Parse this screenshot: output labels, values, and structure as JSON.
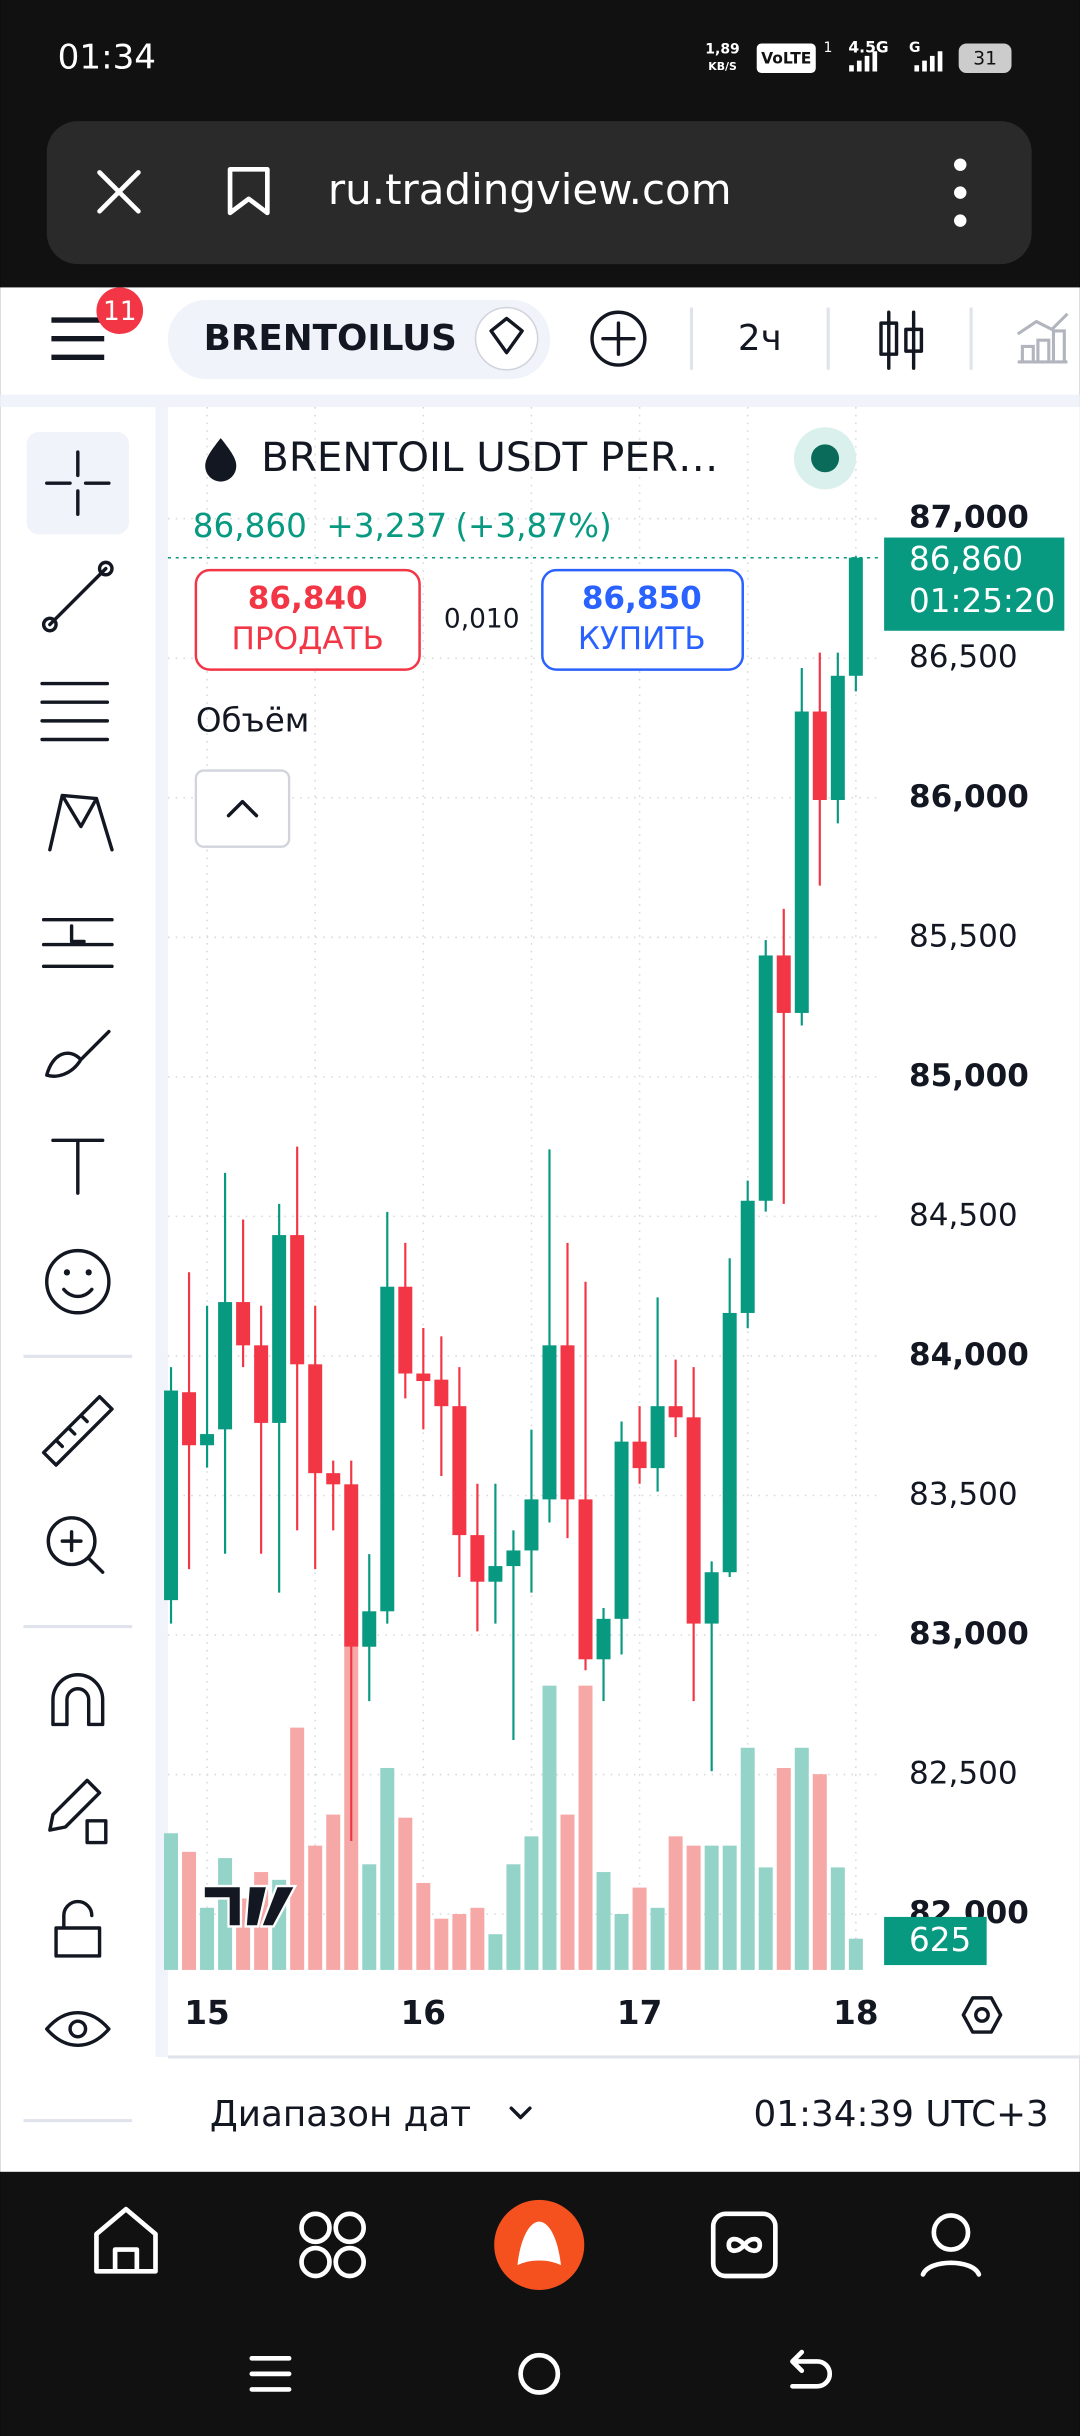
{
  "status_bar": {
    "time": "01:34",
    "speed": "1,89",
    "speed_unit": "KB/S",
    "volte": "VoLTE",
    "sim": "1",
    "net": "4.5G",
    "net2": "G",
    "battery": "31"
  },
  "browser": {
    "url": "ru.tradingview.com"
  },
  "toolbar": {
    "badge": "11",
    "symbol": "BRENTOILUS",
    "interval": "2ч"
  },
  "legend": {
    "title": "BRENTOIL USDT PER…",
    "price": "86,860",
    "change": "+3,237",
    "change_pct": "(+3,87%)"
  },
  "trade": {
    "sell_price": "86,840",
    "sell": "ПРОДАТЬ",
    "spread": "0,010",
    "buy_price": "86,850",
    "buy": "КУПИТЬ"
  },
  "volume_title": "Объём",
  "footer": {
    "date_range": "Диапазон дат",
    "clock": "01:34:39 UTC+3"
  },
  "chart_data": {
    "type": "candlestick",
    "categories": [
      null,
      null,
      "15",
      null,
      null,
      null,
      null,
      null,
      null,
      null,
      null,
      null,
      null,
      null,
      "16",
      null,
      null,
      null,
      null,
      null,
      null,
      null,
      null,
      null,
      null,
      null,
      "17",
      null,
      null,
      null,
      null,
      null,
      null,
      null,
      null,
      null,
      null,
      null,
      "18"
    ],
    "open": [
      83125,
      83870,
      83680,
      83737,
      84193,
      84038,
      83760,
      84433,
      83970,
      83580,
      83540,
      82958,
      83085,
      84248,
      83937,
      83915,
      83820,
      83358,
      83191,
      83247,
      83303,
      83486,
      84038,
      83486,
      82913,
      83058,
      83693,
      83598,
      83820,
      83780,
      83041,
      83225,
      84154,
      84556,
      85435,
      85229,
      86309,
      85992,
      86437
    ],
    "high": [
      83960,
      84300,
      84180,
      84656,
      84489,
      84180,
      84545,
      84750,
      84180,
      83625,
      83625,
      83290,
      84516,
      84405,
      84100,
      84070,
      83960,
      83542,
      83542,
      83375,
      83736,
      84740,
      84405,
      84266,
      83097,
      83765,
      83820,
      84210,
      83987,
      83960,
      83264,
      84350,
      84628,
      85490,
      85602,
      86465,
      86520,
      86520,
      86866
    ],
    "low": [
      83041,
      83236,
      83600,
      83291,
      83960,
      83291,
      83152,
      83375,
      83236,
      83375,
      82262,
      82763,
      83041,
      83848,
      83737,
      83570,
      83208,
      83013,
      83041,
      82624,
      83152,
      83403,
      83347,
      82874,
      82763,
      82930,
      83542,
      83514,
      83709,
      82763,
      82512,
      83208,
      84099,
      84517,
      84545,
      85184,
      85685,
      85908,
      86381
    ],
    "close": [
      83876,
      83680,
      83720,
      84193,
      84038,
      83760,
      84433,
      83970,
      83580,
      83540,
      82958,
      83085,
      84248,
      83937,
      83910,
      83820,
      83358,
      83191,
      83247,
      83303,
      83486,
      84038,
      83486,
      82913,
      83058,
      83693,
      83598,
      83820,
      83780,
      83041,
      83225,
      84154,
      84556,
      85435,
      85229,
      86309,
      85992,
      86437,
      86860
    ],
    "volume": [
      2733,
      2361,
      1242,
      2236,
      1429,
      1957,
      1801,
      4845,
      2485,
      3106,
      6460,
      2112,
      4038,
      3044,
      1739,
      1025,
      1118,
      1242,
      714,
      2112,
      2671,
      5684,
      3106,
      5684,
      1957,
      1118,
      1646,
      1242,
      2671,
      2485,
      2485,
      2485,
      4442,
      2050,
      4038,
      4442,
      3914,
      2050,
      625
    ],
    "ylim": [
      81800,
      87400
    ],
    "yticks": [
      {
        "value": 82000,
        "label": "82,000"
      },
      {
        "value": 82500,
        "label": "82,500"
      },
      {
        "value": 83000,
        "label": "83,000"
      },
      {
        "value": 83500,
        "label": "83,500"
      },
      {
        "value": 84000,
        "label": "84,000"
      },
      {
        "value": 84500,
        "label": "84,500"
      },
      {
        "value": 85000,
        "label": "85,000"
      },
      {
        "value": 85500,
        "label": "85,500"
      },
      {
        "value": 86000,
        "label": "86,000"
      },
      {
        "value": 86500,
        "label": "86,500"
      },
      {
        "value": 87000,
        "label": "87,000"
      }
    ],
    "volume_lim": [
      0,
      31250
    ],
    "grid": true,
    "up_color": "#089981",
    "down_color": "#f23645",
    "volume_up_color": "#93d3c8",
    "volume_down_color": "#f6a8a6",
    "last_price_label": "86,860",
    "countdown": "01:25:20"
  }
}
